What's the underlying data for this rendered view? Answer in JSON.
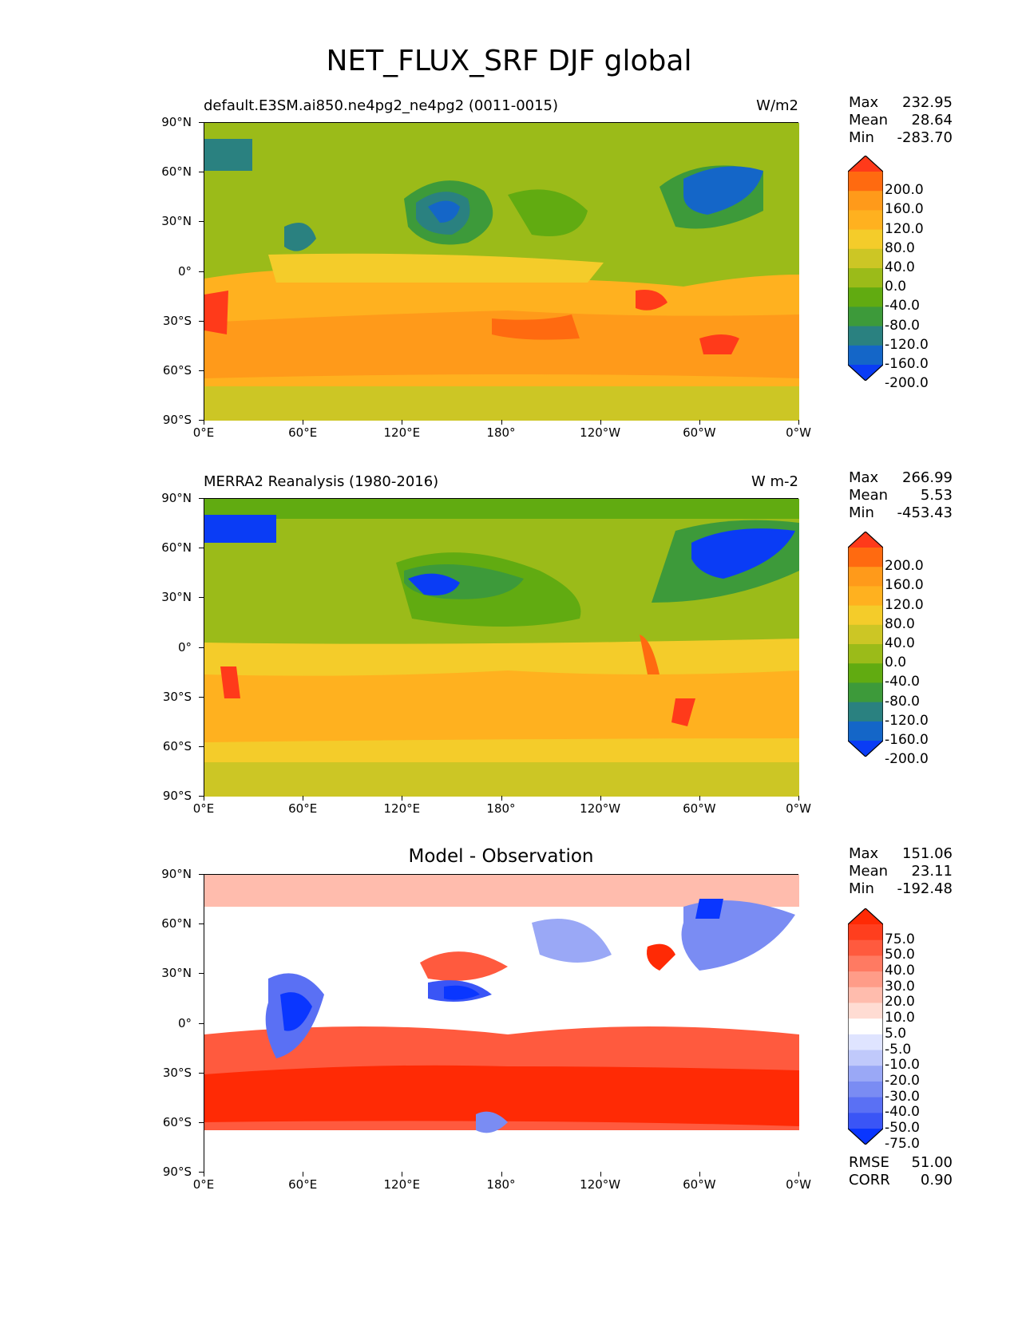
{
  "title": "NET_FLUX_SRF DJF global",
  "chart_data": [
    {
      "type": "heatmap",
      "title_left": "default.E3SM.ai850.ne4pg2_ne4pg2 (0011-0015)",
      "title_right": "W/m2",
      "stats": {
        "max_label": "Max",
        "max": "232.95",
        "mean_label": "Mean",
        "mean": "28.64",
        "min_label": "Min",
        "min": "-283.70"
      },
      "xticks": [
        "0°E",
        "60°E",
        "120°E",
        "180°",
        "120°W",
        "60°W",
        "0°W"
      ],
      "yticks": [
        "90°N",
        "60°N",
        "30°N",
        "0°",
        "30°S",
        "60°S",
        "90°S"
      ],
      "colorbar_levels": [
        "200.0",
        "160.0",
        "120.0",
        "80.0",
        "40.0",
        "0.0",
        "-40.0",
        "-80.0",
        "-120.0",
        "-160.0",
        "-200.0"
      ],
      "colorbar_colors": [
        "#ff3a1a",
        "#ff6a10",
        "#ff9a1a",
        "#ffb11f",
        "#f4cc2a",
        "#ccc625",
        "#9bbb19",
        "#61ab11",
        "#3d9a3a",
        "#2a8180",
        "#1466c8",
        "#0a3cf5"
      ]
    },
    {
      "type": "heatmap",
      "title_left": "MERRA2 Reanalysis (1980-2016)",
      "title_right": "W m-2",
      "stats": {
        "max_label": "Max",
        "max": "266.99",
        "mean_label": "Mean",
        "mean": "5.53",
        "min_label": "Min",
        "min": "-453.43"
      },
      "xticks": [
        "0°E",
        "60°E",
        "120°E",
        "180°",
        "120°W",
        "60°W",
        "0°W"
      ],
      "yticks": [
        "90°N",
        "60°N",
        "30°N",
        "0°",
        "30°S",
        "60°S",
        "90°S"
      ],
      "colorbar_levels": [
        "200.0",
        "160.0",
        "120.0",
        "80.0",
        "40.0",
        "0.0",
        "-40.0",
        "-80.0",
        "-120.0",
        "-160.0",
        "-200.0"
      ],
      "colorbar_colors": [
        "#ff3a1a",
        "#ff6a10",
        "#ff9a1a",
        "#ffb11f",
        "#f4cc2a",
        "#ccc625",
        "#9bbb19",
        "#61ab11",
        "#3d9a3a",
        "#2a8180",
        "#1466c8",
        "#0a3cf5"
      ]
    },
    {
      "type": "heatmap",
      "title_center": "Model - Observation",
      "stats": {
        "max_label": "Max",
        "max": "151.06",
        "mean_label": "Mean",
        "mean": "23.11",
        "min_label": "Min",
        "min": "-192.48"
      },
      "xticks": [
        "0°E",
        "60°E",
        "120°E",
        "180°",
        "120°W",
        "60°W",
        "0°W"
      ],
      "yticks": [
        "90°N",
        "60°N",
        "30°N",
        "0°",
        "30°S",
        "60°S",
        "90°S"
      ],
      "colorbar_levels": [
        "75.0",
        "50.0",
        "40.0",
        "30.0",
        "20.0",
        "10.0",
        "5.0",
        "-5.0",
        "-10.0",
        "-20.0",
        "-30.0",
        "-40.0",
        "-50.0",
        "-75.0"
      ],
      "colorbar_colors": [
        "#ff2a05",
        "#ff3e1e",
        "#ff5a3e",
        "#ff7a62",
        "#ff9c88",
        "#ffbcad",
        "#ffdcd3",
        "#ffffff",
        "#dfe4ff",
        "#c0c9fb",
        "#9aa8f6",
        "#7a8cf3",
        "#5a70f4",
        "#3a55f6",
        "#0a36ff"
      ],
      "rmse_label": "RMSE",
      "rmse": "51.00",
      "corr_label": "CORR",
      "corr": "0.90"
    }
  ]
}
